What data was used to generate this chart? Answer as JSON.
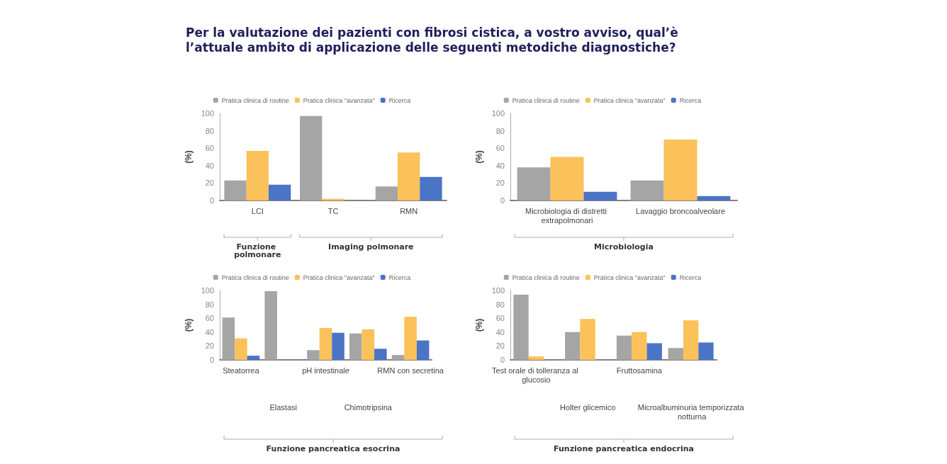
{
  "chart_data": [
    {
      "type": "bar",
      "title": "Per la valutazione dei pazienti con fibrosi cistica, a vostro avviso, qual’è l’attuale ambito di applicazione delle seguenti metodiche diagnostiche?",
      "ylabel": "(%)",
      "categories": [
        "LCI",
        "TC",
        "RMN"
      ],
      "series": [
        {
          "name": "Pratica clinica di routine",
          "color": "#a5a5a5",
          "values": [
            23,
            97,
            16
          ]
        },
        {
          "name": "Pratica clinica \"avanzata\"",
          "color": "#fbc15a",
          "values": [
            57,
            2,
            55
          ]
        },
        {
          "name": "Ricerca",
          "color": "#4a74c6",
          "values": [
            18,
            0,
            27
          ]
        }
      ],
      "ylim": [
        0,
        100
      ],
      "yticks": [
        0,
        20,
        40,
        60,
        80,
        100
      ],
      "grid": false,
      "legend": "top",
      "annotations": [
        "Funzione polmonare",
        "Imaging polmonare"
      ]
    },
    {
      "type": "bar",
      "ylabel": "(%)",
      "categories": [
        "Microbiologia di distretti extrapolmonari",
        "Lavaggio broncoalveolare"
      ],
      "series": [
        {
          "name": "Pratica clinica di routine",
          "color": "#a5a5a5",
          "values": [
            38,
            23
          ]
        },
        {
          "name": "Pratica clinica \"avanzata\"",
          "color": "#fbc15a",
          "values": [
            50,
            70
          ]
        },
        {
          "name": "Ricerca",
          "color": "#4a74c6",
          "values": [
            10,
            5
          ]
        }
      ],
      "ylim": [
        0,
        100
      ],
      "yticks": [
        0,
        20,
        40,
        60,
        80,
        100
      ],
      "grid": false,
      "legend": "top",
      "annotations": [
        "Microbiologia"
      ]
    },
    {
      "type": "bar",
      "ylabel": "(%)",
      "categories": [
        "Steatorrea",
        "Elastasi",
        "pH intestinale",
        "Chimotripsina",
        "RMN con secretina"
      ],
      "series": [
        {
          "name": "Pratica clinica di routine",
          "color": "#a5a5a5",
          "values": [
            61,
            99,
            14,
            38,
            7
          ]
        },
        {
          "name": "Pratica clinica \"avanzata\"",
          "color": "#fbc15a",
          "values": [
            31,
            0,
            46,
            44,
            62
          ]
        },
        {
          "name": "Ricerca",
          "color": "#4a74c6",
          "values": [
            6,
            0,
            39,
            16,
            28
          ]
        }
      ],
      "ylim": [
        0,
        100
      ],
      "yticks": [
        0,
        20,
        40,
        60,
        80,
        100
      ],
      "grid": false,
      "legend": "top",
      "annotations": [
        "Funzione pancreatica esocrina"
      ]
    },
    {
      "type": "bar",
      "ylabel": "(%)",
      "categories": [
        "Test orale di tolleranza al glucosio",
        "Holter glicemico",
        "Fruttosamina",
        "Microalbuminuria temporizzata notturna"
      ],
      "series": [
        {
          "name": "Pratica clinica di routine",
          "color": "#a5a5a5",
          "values": [
            94,
            40,
            35,
            17
          ]
        },
        {
          "name": "Pratica clinica \"avanzata\"",
          "color": "#fbc15a",
          "values": [
            5,
            59,
            40,
            57
          ]
        },
        {
          "name": "Ricerca",
          "color": "#4a74c6",
          "values": [
            0,
            0,
            24,
            25
          ]
        }
      ],
      "ylim": [
        0,
        100
      ],
      "yticks": [
        0,
        20,
        40,
        60,
        80,
        100
      ],
      "grid": false,
      "legend": "top",
      "annotations": [
        "Funzione pancreatica endocrina"
      ]
    }
  ]
}
